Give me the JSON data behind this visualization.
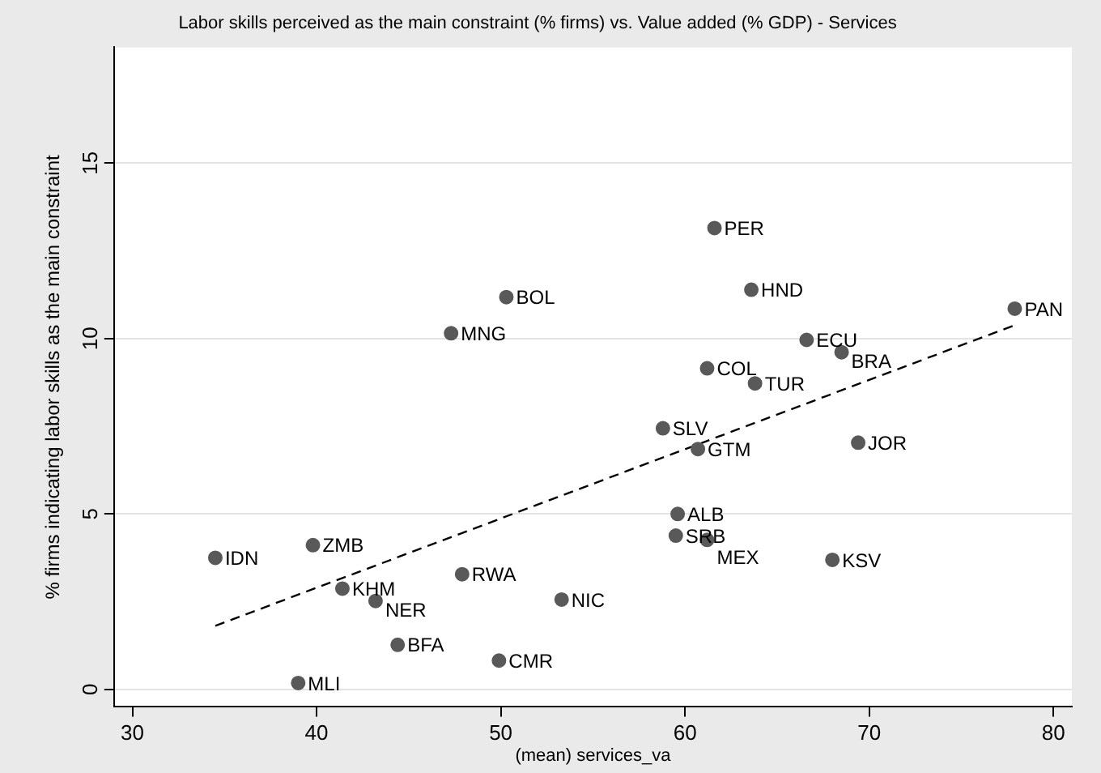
{
  "chart_data": {
    "type": "scatter",
    "title": "Labor skills perceived as the main constraint (% firms) vs. Value added (% GDP) - Services",
    "xlabel": "(mean) services_va",
    "ylabel": "% firms indicating labor skills as the main constraint",
    "xlim": [
      29,
      81
    ],
    "ylim": [
      -0.5,
      18.3
    ],
    "xticks": [
      30,
      40,
      50,
      60,
      70,
      80
    ],
    "yticks": [
      0,
      5,
      10,
      15
    ],
    "grid": "y",
    "legend": false,
    "marker": "circle",
    "series": [
      {
        "type": "scatter",
        "color": "#595959",
        "x": [
          50.3,
          47.3,
          34.5,
          39.8,
          47.9,
          41.4,
          43.2,
          53.3,
          44.4,
          49.9,
          39.0,
          61.6,
          63.6,
          77.9,
          66.6,
          68.5,
          61.2,
          63.8,
          58.8,
          60.7,
          69.4,
          59.6,
          59.5,
          61.2,
          68.0
        ],
        "values": [
          11.18,
          10.15,
          3.75,
          4.11,
          3.28,
          2.87,
          2.52,
          2.56,
          1.27,
          0.82,
          0.18,
          13.15,
          11.39,
          10.85,
          9.96,
          9.61,
          9.15,
          8.72,
          7.44,
          6.85,
          7.03,
          5.0,
          4.38,
          4.26,
          3.69
        ]
      },
      {
        "type": "line",
        "color": "#000000",
        "line_style": "dashed",
        "marker": "none",
        "x": [
          34.5,
          77.9
        ],
        "values": [
          1.81,
          10.38
        ]
      }
    ],
    "annotations": [
      {
        "text": "BOL",
        "x": 50.3,
        "y": 11.18
      },
      {
        "text": "MNG",
        "x": 47.3,
        "y": 10.15
      },
      {
        "text": "IDN",
        "x": 34.5,
        "y": 3.75
      },
      {
        "text": "ZMB",
        "x": 39.8,
        "y": 4.11
      },
      {
        "text": "RWA",
        "x": 47.9,
        "y": 3.28
      },
      {
        "text": "KHM",
        "x": 41.4,
        "y": 2.87
      },
      {
        "text": "NER",
        "x": 43.2,
        "y": 2.52
      },
      {
        "text": "NIC",
        "x": 53.3,
        "y": 2.56
      },
      {
        "text": "BFA",
        "x": 44.4,
        "y": 1.27
      },
      {
        "text": "CMR",
        "x": 49.9,
        "y": 0.82
      },
      {
        "text": "MLI",
        "x": 39.0,
        "y": 0.18
      },
      {
        "text": "PER",
        "x": 61.6,
        "y": 13.15
      },
      {
        "text": "HND",
        "x": 63.6,
        "y": 11.39
      },
      {
        "text": "PAN",
        "x": 77.9,
        "y": 10.85
      },
      {
        "text": "ECU",
        "x": 66.6,
        "y": 9.96
      },
      {
        "text": "BRA",
        "x": 68.5,
        "y": 9.61
      },
      {
        "text": "COL",
        "x": 61.2,
        "y": 9.15
      },
      {
        "text": "TUR",
        "x": 63.8,
        "y": 8.72
      },
      {
        "text": "SLV",
        "x": 58.8,
        "y": 7.44
      },
      {
        "text": "GTM",
        "x": 60.7,
        "y": 6.85
      },
      {
        "text": "JOR",
        "x": 69.4,
        "y": 7.03
      },
      {
        "text": "ALB",
        "x": 59.6,
        "y": 5.0
      },
      {
        "text": "SRB",
        "x": 59.5,
        "y": 4.38
      },
      {
        "text": "MEX",
        "x": 61.2,
        "y": 4.26
      },
      {
        "text": "KSV",
        "x": 68.0,
        "y": 3.69
      }
    ]
  }
}
